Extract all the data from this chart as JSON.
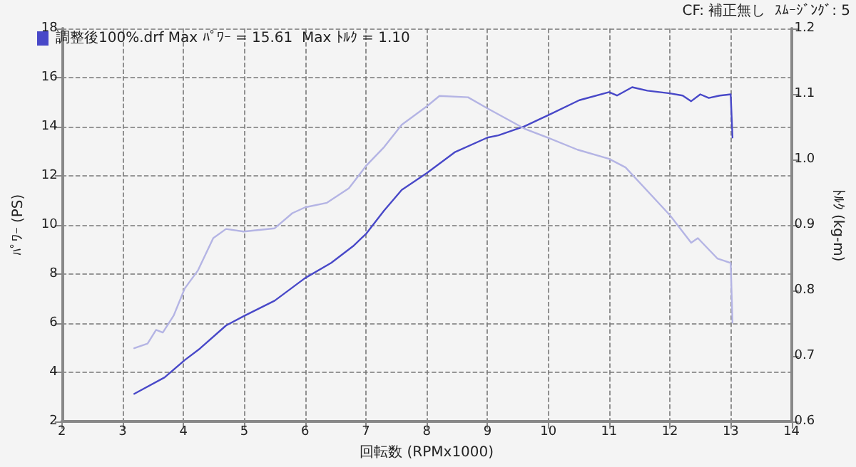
{
  "chart_data": {
    "type": "line",
    "xlabel": "回転数 (RPMx1000)",
    "ylabel": "ﾊﾟﾜｰ (PS)",
    "y2label": "ﾄﾙｸ (kg-m)",
    "annotations": [
      "CF: 補正無し  ｽﾑｰｼﾞﾝｸﾞ: 5"
    ],
    "xlim": [
      2,
      14
    ],
    "xticks": [
      2,
      3,
      4,
      5,
      6,
      7,
      8,
      9,
      10,
      11,
      12,
      13,
      14
    ],
    "ylim": [
      2,
      18
    ],
    "yticks": [
      2,
      4,
      6,
      8,
      10,
      12,
      14,
      16,
      18
    ],
    "y2lim": [
      0.6,
      1.2
    ],
    "y2ticks": [
      {
        "value": 0.6,
        "label": "0.6"
      },
      {
        "value": 0.7,
        "label": "0.7"
      },
      {
        "value": 0.8,
        "label": "0.8"
      },
      {
        "value": 0.9,
        "label": "0.9"
      },
      {
        "value": 1.0,
        "label": "1.0"
      },
      {
        "value": 1.1,
        "label": "1.1"
      },
      {
        "value": 1.2,
        "label": "1.2"
      }
    ],
    "grid": true,
    "legend": "top left",
    "marker": "none",
    "line_style": "solid",
    "series": [
      {
        "name": "調整後100%.drf Max ﾊﾟﾜｰ = 15.61  Max ﾄﾙｸ = 1.10",
        "color": "#4848c8",
        "x": [
          3.19,
          3.69,
          4.02,
          4.27,
          4.7,
          4.99,
          5.5,
          6.0,
          6.43,
          6.79,
          7.01,
          7.3,
          7.59,
          8.0,
          8.46,
          9.0,
          9.18,
          9.61,
          10.04,
          10.51,
          11.0,
          11.13,
          11.38,
          11.63,
          12.0,
          12.21,
          12.35,
          12.5,
          12.64,
          12.82,
          13.0,
          13.03
        ],
        "values": [
          3.13,
          3.8,
          4.5,
          4.97,
          5.91,
          6.29,
          6.92,
          7.84,
          8.46,
          9.14,
          9.66,
          10.59,
          11.43,
          12.11,
          12.96,
          13.56,
          13.65,
          14.02,
          14.52,
          15.08,
          15.41,
          15.27,
          15.61,
          15.47,
          15.36,
          15.27,
          15.04,
          15.32,
          15.17,
          15.27,
          15.32,
          13.56
        ]
      },
      {
        "color": "#b4b4e4",
        "axis": "y2",
        "x": [
          3.19,
          3.41,
          3.55,
          3.66,
          3.84,
          4.02,
          4.24,
          4.49,
          4.7,
          4.99,
          5.5,
          5.79,
          6.0,
          6.36,
          6.72,
          7.01,
          7.3,
          7.59,
          8.0,
          8.21,
          8.68,
          9.0,
          9.61,
          10.0,
          10.48,
          11.0,
          11.27,
          12.0,
          12.35,
          12.46,
          12.78,
          13.0,
          13.03
        ],
        "values": [
          0.712,
          0.719,
          0.74,
          0.736,
          0.762,
          0.803,
          0.831,
          0.88,
          0.894,
          0.89,
          0.895,
          0.918,
          0.927,
          0.934,
          0.956,
          0.991,
          1.019,
          1.053,
          1.081,
          1.097,
          1.095,
          1.078,
          1.047,
          1.033,
          1.015,
          1.001,
          0.988,
          0.915,
          0.873,
          0.88,
          0.849,
          0.842,
          0.751
        ]
      }
    ]
  }
}
